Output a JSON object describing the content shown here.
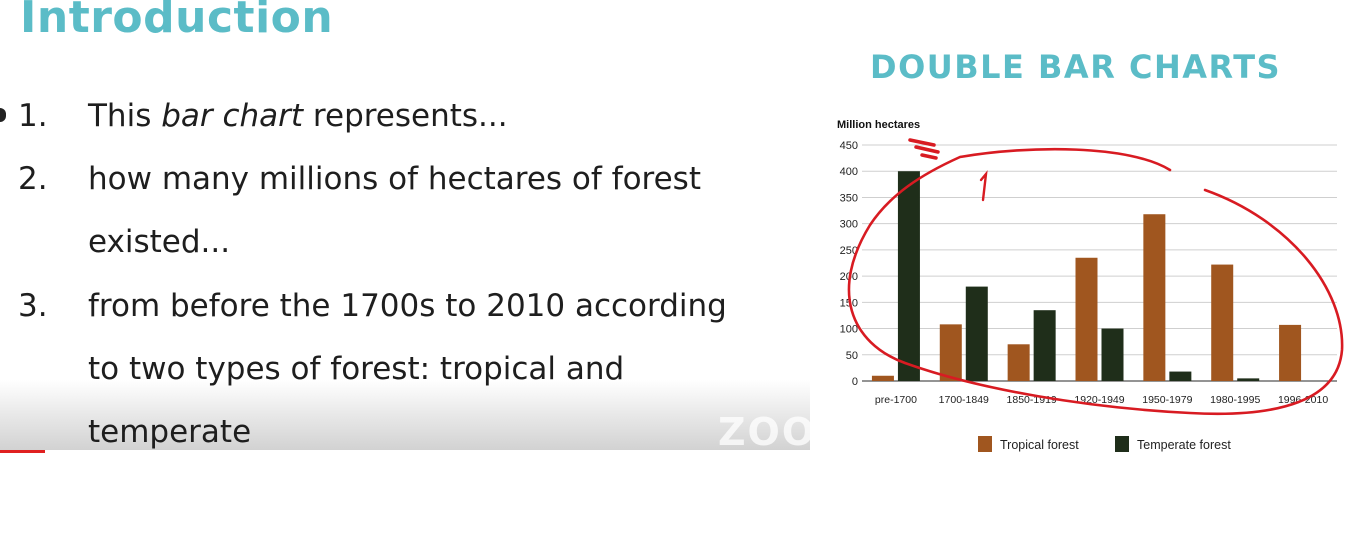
{
  "slide": {
    "title": "Introduction",
    "chart_heading": "DOUBLE BAR CHARTS",
    "watermark": "ZOO",
    "list": [
      {
        "number": "1.",
        "pre": "This ",
        "emphasis": "bar chart",
        "post": " represents..."
      },
      {
        "number": "2.",
        "text": "how many millions of hectares of forest"
      },
      {
        "number": "",
        "text": "existed..."
      },
      {
        "number": "3.",
        "text": "from before the 1700s to 2010 according"
      },
      {
        "number": "",
        "text": "to two types of forest: tropical and"
      },
      {
        "number": "",
        "text": "temperate"
      }
    ]
  },
  "chart_data": {
    "type": "bar",
    "ylabel": "Million hectares",
    "ylim": [
      0,
      450
    ],
    "yticks": [
      0,
      50,
      100,
      150,
      200,
      250,
      300,
      350,
      400,
      450
    ],
    "grid": true,
    "legend_position": "bottom",
    "categories": [
      "pre-1700",
      "1700-1849",
      "1850-1919",
      "1920-1949",
      "1950-1979",
      "1980-1995",
      "1996-2010"
    ],
    "series": [
      {
        "name": "Tropical forest",
        "color": "#a0561f",
        "values": [
          10,
          108,
          70,
          235,
          318,
          222,
          107
        ]
      },
      {
        "name": "Temperate forest",
        "color": "#1f2e1a",
        "values": [
          400,
          180,
          135,
          100,
          18,
          5,
          0
        ]
      }
    ],
    "annotation_color": "#d81b22"
  }
}
